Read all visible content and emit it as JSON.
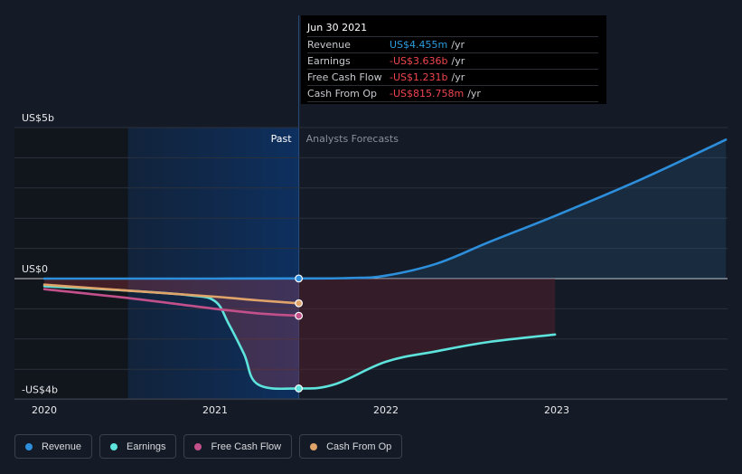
{
  "colors": {
    "revenue": "#2d8fdc",
    "earnings": "#5de2dc",
    "free_cash_flow": "#c2508a",
    "cash_from_op": "#e0a46a",
    "negative_fill": "#f0454f",
    "negative_text": "#f0454f",
    "revenue_text": "#2d9cdb"
  },
  "tooltip": {
    "date": "Jun 30 2021",
    "rows": [
      {
        "label": "Revenue",
        "value": "US$4.455m",
        "unit": "/yr",
        "color": "#2d9cdb"
      },
      {
        "label": "Earnings",
        "value": "-US$3.636b",
        "unit": "/yr",
        "color": "#f0454f"
      },
      {
        "label": "Free Cash Flow",
        "value": "-US$1.231b",
        "unit": "/yr",
        "color": "#f0454f"
      },
      {
        "label": "Cash From Op",
        "value": "-US$815.758m",
        "unit": "/yr",
        "color": "#f0454f"
      }
    ]
  },
  "legend": [
    {
      "label": "Revenue",
      "color": "#2d8fdc"
    },
    {
      "label": "Earnings",
      "color": "#5de2dc"
    },
    {
      "label": "Free Cash Flow",
      "color": "#c2508a"
    },
    {
      "label": "Cash From Op",
      "color": "#e0a46a"
    }
  ],
  "chart_data": {
    "type": "line",
    "title": "",
    "xlabel": "",
    "ylabel": "",
    "xlim": [
      2020.0,
      2023.99
    ],
    "ylim": [
      -4,
      5
    ],
    "y_tick_labels": [
      {
        "value": 5,
        "label": "US$5b"
      },
      {
        "value": 0,
        "label": "US$0"
      },
      {
        "value": -4,
        "label": "-US$4b"
      }
    ],
    "x_tick_labels": [
      {
        "value": 2020,
        "label": "2020"
      },
      {
        "value": 2021,
        "label": "2021"
      },
      {
        "value": 2022,
        "label": "2022"
      },
      {
        "value": 2023,
        "label": "2023"
      }
    ],
    "gridlines_y": [
      5,
      4,
      3,
      2,
      1,
      0,
      -1,
      -2,
      -3,
      -4
    ],
    "past_label": "Past",
    "forecast_label": "Analysts Forecasts",
    "past_region_start": 2020.49,
    "divider_x": 2021.49,
    "forecast_fill_end": 2022.99,
    "unit": "US$ billions",
    "series": [
      {
        "name": "Revenue",
        "key": "revenue",
        "past": [
          [
            2020.0,
            0.0
          ],
          [
            2020.5,
            0.0
          ],
          [
            2021.0,
            0.0
          ],
          [
            2021.49,
            0.0045
          ]
        ],
        "forecast": [
          [
            2021.49,
            0.0045
          ],
          [
            2021.8,
            0.02
          ],
          [
            2022.0,
            0.1
          ],
          [
            2022.3,
            0.5
          ],
          [
            2022.6,
            1.2
          ],
          [
            2023.0,
            2.1
          ],
          [
            2023.5,
            3.3
          ],
          [
            2023.99,
            4.6
          ]
        ]
      },
      {
        "name": "Earnings",
        "key": "earnings",
        "past": [
          [
            2020.0,
            -0.25
          ],
          [
            2020.5,
            -0.4
          ],
          [
            2020.85,
            -0.55
          ],
          [
            2021.0,
            -0.75
          ],
          [
            2021.08,
            -1.5
          ],
          [
            2021.17,
            -2.5
          ],
          [
            2021.25,
            -3.5
          ],
          [
            2021.49,
            -3.636
          ]
        ],
        "forecast": [
          [
            2021.49,
            -3.636
          ],
          [
            2021.7,
            -3.5
          ],
          [
            2022.0,
            -2.75
          ],
          [
            2022.3,
            -2.4
          ],
          [
            2022.6,
            -2.1
          ],
          [
            2022.99,
            -1.85
          ]
        ]
      },
      {
        "name": "Free Cash Flow",
        "key": "free_cash_flow",
        "past": [
          [
            2020.0,
            -0.35
          ],
          [
            2020.5,
            -0.65
          ],
          [
            2021.0,
            -1.0
          ],
          [
            2021.25,
            -1.15
          ],
          [
            2021.49,
            -1.231
          ]
        ],
        "forecast": []
      },
      {
        "name": "Cash From Op",
        "key": "cash_from_op",
        "past": [
          [
            2020.0,
            -0.2
          ],
          [
            2020.5,
            -0.4
          ],
          [
            2021.0,
            -0.6
          ],
          [
            2021.25,
            -0.72
          ],
          [
            2021.49,
            -0.816
          ]
        ],
        "forecast": []
      }
    ]
  }
}
